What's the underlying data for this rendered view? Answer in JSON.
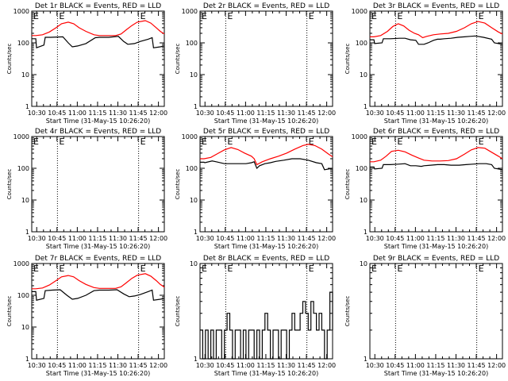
{
  "figure": {
    "xlabel": "Start Time (31-May-15 10:26:20)",
    "ylabel": "Counts/sec",
    "x_ticks": [
      "10:30",
      "10:45",
      "11:00",
      "11:15",
      "11:30",
      "11:45",
      "12:00"
    ],
    "y_ticks": [
      "1",
      "10",
      "100",
      "1000"
    ],
    "marker_label": "E"
  },
  "colors": {
    "events": "#000000",
    "lld": "#ff0000",
    "axes": "#000000",
    "background": "#ffffff"
  },
  "chart_data": [
    {
      "type": "line",
      "title": "Det 1r BLACK = Events, RED = LLD",
      "ylim": [
        1,
        1000
      ],
      "log_y": true,
      "x_unit": "minutes since 10:26:20",
      "xlim": [
        0,
        98
      ],
      "markers_x": [
        19,
        79
      ],
      "series": [
        {
          "name": "Events",
          "color": "#000000",
          "x": [
            0,
            3,
            3.5,
            9,
            10,
            14,
            23,
            27,
            30,
            34,
            40,
            47,
            50,
            52,
            57,
            64,
            68,
            71,
            76,
            80,
            86,
            89,
            90,
            95,
            98
          ],
          "y": [
            135,
            135,
            70,
            85,
            150,
            150,
            155,
            100,
            75,
            80,
            95,
            145,
            150,
            150,
            150,
            160,
            110,
            90,
            95,
            110,
            130,
            145,
            70,
            75,
            80
          ]
        },
        {
          "name": "LLD",
          "color": "#ff0000",
          "x": [
            0,
            3,
            8,
            13,
            18,
            22,
            27,
            31,
            35,
            40,
            46,
            50,
            56,
            62,
            66,
            70,
            74,
            78,
            84,
            88,
            92,
            95,
            98
          ],
          "y": [
            170,
            170,
            180,
            220,
            300,
            400,
            450,
            400,
            300,
            230,
            180,
            170,
            170,
            170,
            190,
            260,
            350,
            450,
            500,
            420,
            300,
            230,
            190
          ]
        }
      ]
    },
    {
      "type": "line",
      "title": "Det 2r BLACK = Events, RED = LLD",
      "ylim": [
        1,
        1000
      ],
      "log_y": true,
      "x_unit": "minutes since 10:26:20",
      "xlim": [
        0,
        98
      ],
      "markers_x": [
        19,
        79
      ],
      "series": []
    },
    {
      "type": "line",
      "title": "Det 3r BLACK = Events, RED = LLD",
      "ylim": [
        1,
        1000
      ],
      "log_y": true,
      "x_unit": "minutes since 10:26:20",
      "xlim": [
        0,
        98
      ],
      "markers_x": [
        19,
        79
      ],
      "series": [
        {
          "name": "Events",
          "color": "#000000",
          "x": [
            0,
            3,
            3.5,
            9,
            10,
            15,
            22,
            26,
            30,
            34,
            36,
            40,
            43,
            47,
            50,
            52,
            55,
            60,
            65,
            70,
            74,
            78,
            84,
            90,
            92,
            98
          ],
          "y": [
            125,
            125,
            95,
            100,
            135,
            135,
            140,
            140,
            125,
            120,
            90,
            90,
            100,
            120,
            130,
            130,
            135,
            140,
            150,
            155,
            160,
            165,
            150,
            130,
            100,
            90
          ]
        },
        {
          "name": "LLD",
          "color": "#ff0000",
          "x": [
            0,
            3,
            8,
            13,
            17,
            21,
            25,
            29,
            33,
            36,
            39,
            42,
            47,
            52,
            58,
            64,
            70,
            75,
            80,
            85,
            90,
            95,
            98
          ],
          "y": [
            155,
            155,
            170,
            230,
            330,
            400,
            340,
            250,
            200,
            180,
            145,
            160,
            180,
            190,
            200,
            230,
            300,
            400,
            470,
            420,
            300,
            220,
            190
          ]
        }
      ]
    },
    {
      "type": "line",
      "title": "Det 4r BLACK = Events, RED = LLD",
      "ylim": [
        1,
        1000
      ],
      "log_y": true,
      "x_unit": "minutes since 10:26:20",
      "xlim": [
        0,
        98
      ],
      "markers_x": [
        19,
        79
      ],
      "series": []
    },
    {
      "type": "line",
      "title": "Det 5r BLACK = Events, RED = LLD",
      "ylim": [
        1,
        1000
      ],
      "log_y": true,
      "x_unit": "minutes since 10:26:20",
      "xlim": [
        0,
        98
      ],
      "markers_x": [
        19,
        79
      ],
      "series": [
        {
          "name": "Events",
          "color": "#000000",
          "x": [
            0,
            3,
            3.5,
            9,
            12,
            18,
            24,
            30,
            34,
            38,
            40,
            42,
            44,
            48,
            52,
            56,
            62,
            68,
            74,
            80,
            86,
            90,
            92,
            98
          ],
          "y": [
            155,
            155,
            150,
            170,
            160,
            140,
            140,
            140,
            140,
            150,
            160,
            100,
            120,
            140,
            150,
            165,
            180,
            200,
            200,
            180,
            150,
            140,
            90,
            100
          ]
        },
        {
          "name": "LLD",
          "color": "#ff0000",
          "x": [
            0,
            3,
            8,
            13,
            18,
            23,
            28,
            33,
            38,
            40,
            42,
            46,
            52,
            58,
            64,
            70,
            76,
            80,
            85,
            90,
            95,
            98
          ],
          "y": [
            200,
            200,
            220,
            290,
            380,
            450,
            390,
            300,
            240,
            200,
            130,
            160,
            200,
            240,
            300,
            400,
            520,
            570,
            520,
            400,
            280,
            230
          ]
        }
      ]
    },
    {
      "type": "line",
      "title": "Det 6r BLACK = Events, RED = LLD",
      "ylim": [
        1,
        1000
      ],
      "log_y": true,
      "x_unit": "minutes since 10:26:20",
      "xlim": [
        0,
        98
      ],
      "markers_x": [
        19,
        79
      ],
      "series": [
        {
          "name": "Events",
          "color": "#000000",
          "x": [
            0,
            3,
            3.5,
            9,
            10,
            15,
            21,
            26,
            30,
            34,
            38,
            40,
            45,
            50,
            55,
            60,
            66,
            71,
            76,
            81,
            86,
            90,
            92,
            98
          ],
          "y": [
            110,
            110,
            95,
            100,
            130,
            130,
            135,
            140,
            120,
            120,
            115,
            120,
            125,
            130,
            130,
            125,
            125,
            130,
            135,
            140,
            140,
            130,
            100,
            90
          ]
        },
        {
          "name": "LLD",
          "color": "#ff0000",
          "x": [
            0,
            3,
            8,
            12,
            16,
            21,
            26,
            31,
            36,
            40,
            46,
            52,
            58,
            64,
            70,
            75,
            80,
            85,
            90,
            95,
            98
          ],
          "y": [
            160,
            160,
            180,
            240,
            340,
            370,
            330,
            260,
            210,
            180,
            170,
            170,
            175,
            200,
            280,
            380,
            450,
            430,
            320,
            240,
            200
          ]
        }
      ]
    },
    {
      "type": "line",
      "title": "Det 7r BLACK = Events, RED = LLD",
      "ylim": [
        1,
        1000
      ],
      "log_y": true,
      "x_unit": "minutes since 10:26:20",
      "xlim": [
        0,
        98
      ],
      "markers_x": [
        19,
        79
      ],
      "series": [
        {
          "name": "Events",
          "color": "#000000",
          "x": [
            0,
            3,
            3.5,
            9,
            10,
            15,
            21,
            26,
            30,
            34,
            40,
            46,
            50,
            52,
            57,
            63,
            68,
            72,
            76,
            80,
            86,
            89,
            90,
            95,
            98
          ],
          "y": [
            130,
            130,
            70,
            80,
            140,
            145,
            150,
            100,
            75,
            80,
            100,
            140,
            145,
            145,
            145,
            150,
            110,
            90,
            95,
            105,
            130,
            145,
            70,
            75,
            80
          ]
        },
        {
          "name": "LLD",
          "color": "#ff0000",
          "x": [
            0,
            3,
            8,
            13,
            18,
            22,
            27,
            31,
            35,
            40,
            46,
            50,
            56,
            62,
            66,
            70,
            74,
            78,
            84,
            88,
            92,
            95,
            98
          ],
          "y": [
            160,
            160,
            170,
            210,
            290,
            380,
            420,
            380,
            290,
            220,
            175,
            165,
            165,
            165,
            185,
            250,
            340,
            430,
            480,
            400,
            290,
            220,
            180
          ]
        }
      ]
    },
    {
      "type": "line",
      "title": "Det 8r BLACK = Events, RED = LLD",
      "ylim": [
        1,
        10
      ],
      "log_y": true,
      "x_unit": "minutes since 10:26:20",
      "xlim": [
        0,
        98
      ],
      "markers_x": [
        19,
        79
      ],
      "series": [
        {
          "name": "Events",
          "color": "#000000",
          "x": [
            0,
            2,
            4,
            6,
            8,
            10,
            12,
            14,
            16,
            18,
            20,
            22,
            24,
            26,
            28,
            30,
            32,
            34,
            36,
            38,
            40,
            42,
            44,
            46,
            48,
            50,
            52,
            54,
            56,
            58,
            60,
            62,
            64,
            66,
            68,
            70,
            72,
            74,
            76,
            78,
            80,
            82,
            84,
            86,
            88,
            90,
            92,
            94,
            96,
            98
          ],
          "y": [
            2,
            1,
            2,
            1,
            2,
            1,
            2,
            2,
            1,
            2,
            3,
            2,
            1,
            2,
            2,
            1,
            2,
            1,
            2,
            2,
            1,
            2,
            1,
            2,
            3,
            2,
            1,
            2,
            2,
            1,
            2,
            2,
            1,
            2,
            3,
            2,
            2,
            3,
            4,
            3,
            2,
            4,
            3,
            2,
            3,
            2,
            1,
            2,
            5,
            2
          ]
        }
      ]
    },
    {
      "type": "line",
      "title": "Det 9r BLACK = Events, RED = LLD",
      "ylim": [
        1,
        10
      ],
      "log_y": true,
      "x_unit": "minutes since 10:26:20",
      "xlim": [
        0,
        98
      ],
      "markers_x": [
        19,
        79
      ],
      "series": []
    }
  ]
}
